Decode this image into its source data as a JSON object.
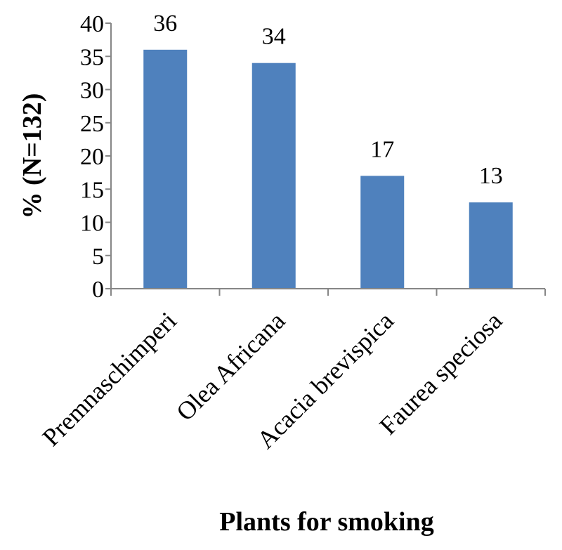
{
  "chart_data": {
    "type": "bar",
    "categories": [
      "Premnaschimperi",
      "Olea Africana",
      "Acacia brevispica",
      "Faurea speciosa"
    ],
    "values": [
      36,
      34,
      17,
      13
    ],
    "data_labels": [
      "36",
      "34",
      "17",
      "13"
    ],
    "title": "",
    "xlabel": "Plants for smoking",
    "ylabel": "% (N=132)",
    "ylim": [
      0,
      40
    ],
    "yticks": [
      0,
      5,
      10,
      15,
      20,
      25,
      30,
      35,
      40
    ],
    "ytick_labels": [
      "0",
      "5",
      "10",
      "15",
      "20",
      "25",
      "30",
      "35",
      "40"
    ],
    "grid": false,
    "legend": "none",
    "bar_color": "#4f81bd",
    "axis_color": "#868686"
  }
}
